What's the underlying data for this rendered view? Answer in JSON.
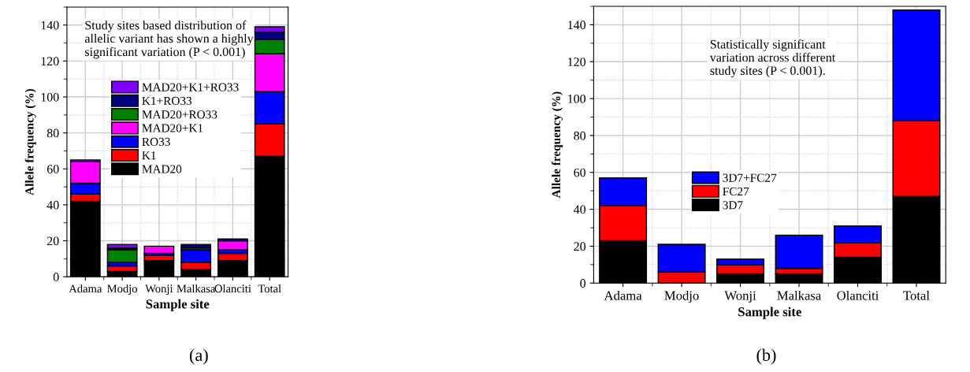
{
  "chart_data": [
    {
      "type": "bar",
      "stacked": true,
      "xlabel": "Sample site",
      "ylabel": "Allele frequency (%)",
      "categories": [
        "Adama",
        "Modjo",
        "Wonji",
        "Malkasa",
        "Olanciti",
        "Total"
      ],
      "ylim": [
        0,
        150
      ],
      "yticks": [
        0,
        20,
        40,
        60,
        80,
        100,
        120,
        140
      ],
      "grid": true,
      "legend": "center",
      "annotations": [
        "Study sites based distribution of\nallelic variant has shown a highly\nsignificant variation (P < 0.001)",
        "(a)"
      ],
      "series": [
        {
          "name": "MAD20",
          "color": "#000000",
          "values": [
            42,
            3,
            9,
            4,
            9,
            67
          ]
        },
        {
          "name": "K1",
          "color": "#ff0000",
          "values": [
            4,
            3,
            3,
            4,
            4,
            18
          ]
        },
        {
          "name": "RO33",
          "color": "#0000ff",
          "values": [
            6,
            2,
            1,
            7,
            2,
            18
          ]
        },
        {
          "name": "MAD20+K1",
          "color": "#ff00ff",
          "values": [
            12,
            0,
            4,
            0,
            5,
            21
          ]
        },
        {
          "name": "MAD20+RO33",
          "color": "#008000",
          "values": [
            0,
            7,
            0,
            1,
            0,
            8
          ]
        },
        {
          "name": "K1+RO33",
          "color": "#000080",
          "values": [
            0,
            1,
            0,
            2,
            1,
            4
          ]
        },
        {
          "name": "MAD20+K1+RO33",
          "color": "#8000ff",
          "values": [
            1,
            2,
            0,
            0,
            0,
            3
          ]
        }
      ]
    },
    {
      "type": "bar",
      "stacked": true,
      "xlabel": "Sample site",
      "ylabel": "Allele frequency (%)",
      "categories": [
        "Adama",
        "Modjo",
        "Wonji",
        "Malkasa",
        "Olanciti",
        "Total"
      ],
      "ylim": [
        0,
        150
      ],
      "yticks": [
        0,
        20,
        40,
        60,
        80,
        100,
        120,
        140
      ],
      "grid": true,
      "legend": "center",
      "annotations": [
        "Statistically significant\nvariation across different\nstudy sites (P < 0.001).",
        "(b)"
      ],
      "series": [
        {
          "name": "3D7",
          "color": "#000000",
          "values": [
            23,
            0,
            5,
            5,
            14,
            47
          ]
        },
        {
          "name": "FC27",
          "color": "#ff0000",
          "values": [
            19,
            6,
            5,
            3,
            8,
            41
          ]
        },
        {
          "name": "3D7+FC27",
          "color": "#0000ff",
          "values": [
            15,
            15,
            3,
            18,
            9,
            60
          ]
        }
      ]
    }
  ]
}
